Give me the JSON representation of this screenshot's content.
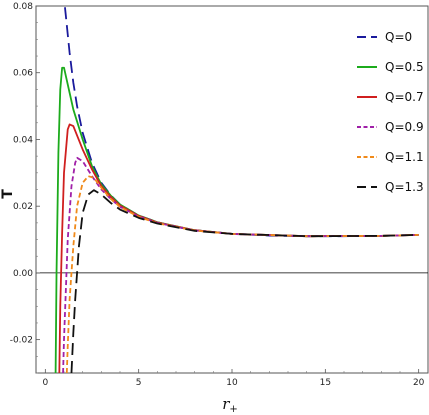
{
  "chart_data": {
    "type": "line",
    "title": "",
    "xlabel": "r",
    "xlabel_sub": "+",
    "ylabel": "T",
    "xlim": [
      -0.5,
      20.5
    ],
    "ylim": [
      -0.03,
      0.08
    ],
    "xticks": [
      0,
      5,
      10,
      15,
      20
    ],
    "xtick_labels": [
      "0",
      "5",
      "10",
      "15",
      "20"
    ],
    "yticks": [
      -0.02,
      0.0,
      0.02,
      0.04,
      0.06,
      0.08
    ],
    "ytick_labels": [
      "-0.02",
      "0.00",
      "0.02",
      "0.04",
      "0.06",
      "0.08"
    ],
    "zero_line": true,
    "grid": false,
    "legend_position": "top-right",
    "series": [
      {
        "name": "Q=0",
        "color": "#1a1a9c",
        "dash": "long-dash",
        "points": [
          [
            0.95,
            0.085
          ],
          [
            1.1,
            0.077
          ],
          [
            1.3,
            0.066
          ],
          [
            1.5,
            0.057
          ],
          [
            1.7,
            0.05
          ],
          [
            2.0,
            0.042
          ],
          [
            2.5,
            0.033
          ],
          [
            3.0,
            0.027
          ],
          [
            3.5,
            0.0233
          ],
          [
            4.0,
            0.0205
          ],
          [
            5.0,
            0.0172
          ],
          [
            6.0,
            0.0152
          ],
          [
            7.0,
            0.0138
          ],
          [
            8.0,
            0.0128
          ],
          [
            10.0,
            0.0117
          ],
          [
            12.0,
            0.0112
          ],
          [
            14.0,
            0.011
          ],
          [
            16.0,
            0.011
          ],
          [
            18.0,
            0.0111
          ],
          [
            20.0,
            0.0114
          ]
        ]
      },
      {
        "name": "Q=0.5",
        "color": "#1cab1c",
        "dash": "solid",
        "points": [
          [
            0.55,
            -0.03
          ],
          [
            0.6,
            0.0
          ],
          [
            0.7,
            0.036
          ],
          [
            0.8,
            0.055
          ],
          [
            0.9,
            0.0615
          ],
          [
            1.0,
            0.0615
          ],
          [
            1.1,
            0.059
          ],
          [
            1.3,
            0.054
          ],
          [
            1.5,
            0.049
          ],
          [
            2.0,
            0.04
          ],
          [
            2.5,
            0.032
          ],
          [
            3.0,
            0.0265
          ],
          [
            3.5,
            0.0232
          ],
          [
            4.0,
            0.0205
          ],
          [
            5.0,
            0.0172
          ],
          [
            6.0,
            0.0152
          ],
          [
            8.0,
            0.0128
          ],
          [
            10.0,
            0.0117
          ],
          [
            14.0,
            0.011
          ],
          [
            18.0,
            0.0111
          ],
          [
            20.0,
            0.0114
          ]
        ]
      },
      {
        "name": "Q=0.7",
        "color": "#d01f1f",
        "dash": "solid",
        "points": [
          [
            0.75,
            -0.03
          ],
          [
            0.8,
            -0.01
          ],
          [
            0.9,
            0.012
          ],
          [
            1.0,
            0.03
          ],
          [
            1.2,
            0.043
          ],
          [
            1.3,
            0.0445
          ],
          [
            1.5,
            0.044
          ],
          [
            2.0,
            0.037
          ],
          [
            2.5,
            0.031
          ],
          [
            3.0,
            0.026
          ],
          [
            3.5,
            0.0228
          ],
          [
            4.0,
            0.0202
          ],
          [
            5.0,
            0.0171
          ],
          [
            6.0,
            0.0151
          ],
          [
            8.0,
            0.0128
          ],
          [
            10.0,
            0.0117
          ],
          [
            14.0,
            0.011
          ],
          [
            18.0,
            0.0111
          ],
          [
            20.0,
            0.0114
          ]
        ]
      },
      {
        "name": "Q=0.9",
        "color": "#a020a8",
        "dash": "short-dash",
        "points": [
          [
            0.95,
            -0.03
          ],
          [
            1.0,
            -0.02
          ],
          [
            1.1,
            -0.005
          ],
          [
            1.2,
            0.01
          ],
          [
            1.4,
            0.026
          ],
          [
            1.6,
            0.033
          ],
          [
            1.7,
            0.0345
          ],
          [
            2.0,
            0.0335
          ],
          [
            2.5,
            0.029
          ],
          [
            3.0,
            0.025
          ],
          [
            3.5,
            0.0222
          ],
          [
            4.0,
            0.0198
          ],
          [
            5.0,
            0.0169
          ],
          [
            6.0,
            0.015
          ],
          [
            8.0,
            0.0127
          ],
          [
            10.0,
            0.0117
          ],
          [
            14.0,
            0.011
          ],
          [
            18.0,
            0.0111
          ],
          [
            20.0,
            0.0114
          ]
        ]
      },
      {
        "name": "Q=1.1",
        "color": "#f08a1a",
        "dash": "short-dash",
        "points": [
          [
            1.15,
            -0.03
          ],
          [
            1.2,
            -0.022
          ],
          [
            1.3,
            -0.008
          ],
          [
            1.5,
            0.008
          ],
          [
            1.7,
            0.02
          ],
          [
            2.0,
            0.027
          ],
          [
            2.3,
            0.029
          ],
          [
            2.6,
            0.0285
          ],
          [
            3.0,
            0.0255
          ],
          [
            3.5,
            0.0222
          ],
          [
            4.0,
            0.0198
          ],
          [
            5.0,
            0.0168
          ],
          [
            6.0,
            0.0149
          ],
          [
            8.0,
            0.0127
          ],
          [
            10.0,
            0.0117
          ],
          [
            14.0,
            0.011
          ],
          [
            18.0,
            0.0111
          ],
          [
            20.0,
            0.0114
          ]
        ]
      },
      {
        "name": "Q=1.3",
        "color": "#111111",
        "dash": "long-dash",
        "points": [
          [
            1.4,
            -0.03
          ],
          [
            1.5,
            -0.018
          ],
          [
            1.6,
            -0.008
          ],
          [
            1.8,
            0.008
          ],
          [
            2.0,
            0.018
          ],
          [
            2.3,
            0.0235
          ],
          [
            2.6,
            0.0248
          ],
          [
            3.0,
            0.0235
          ],
          [
            3.5,
            0.021
          ],
          [
            4.0,
            0.019
          ],
          [
            5.0,
            0.0165
          ],
          [
            6.0,
            0.0148
          ],
          [
            8.0,
            0.0126
          ],
          [
            10.0,
            0.0117
          ],
          [
            14.0,
            0.011
          ],
          [
            18.0,
            0.0111
          ],
          [
            20.0,
            0.0114
          ]
        ]
      }
    ]
  }
}
